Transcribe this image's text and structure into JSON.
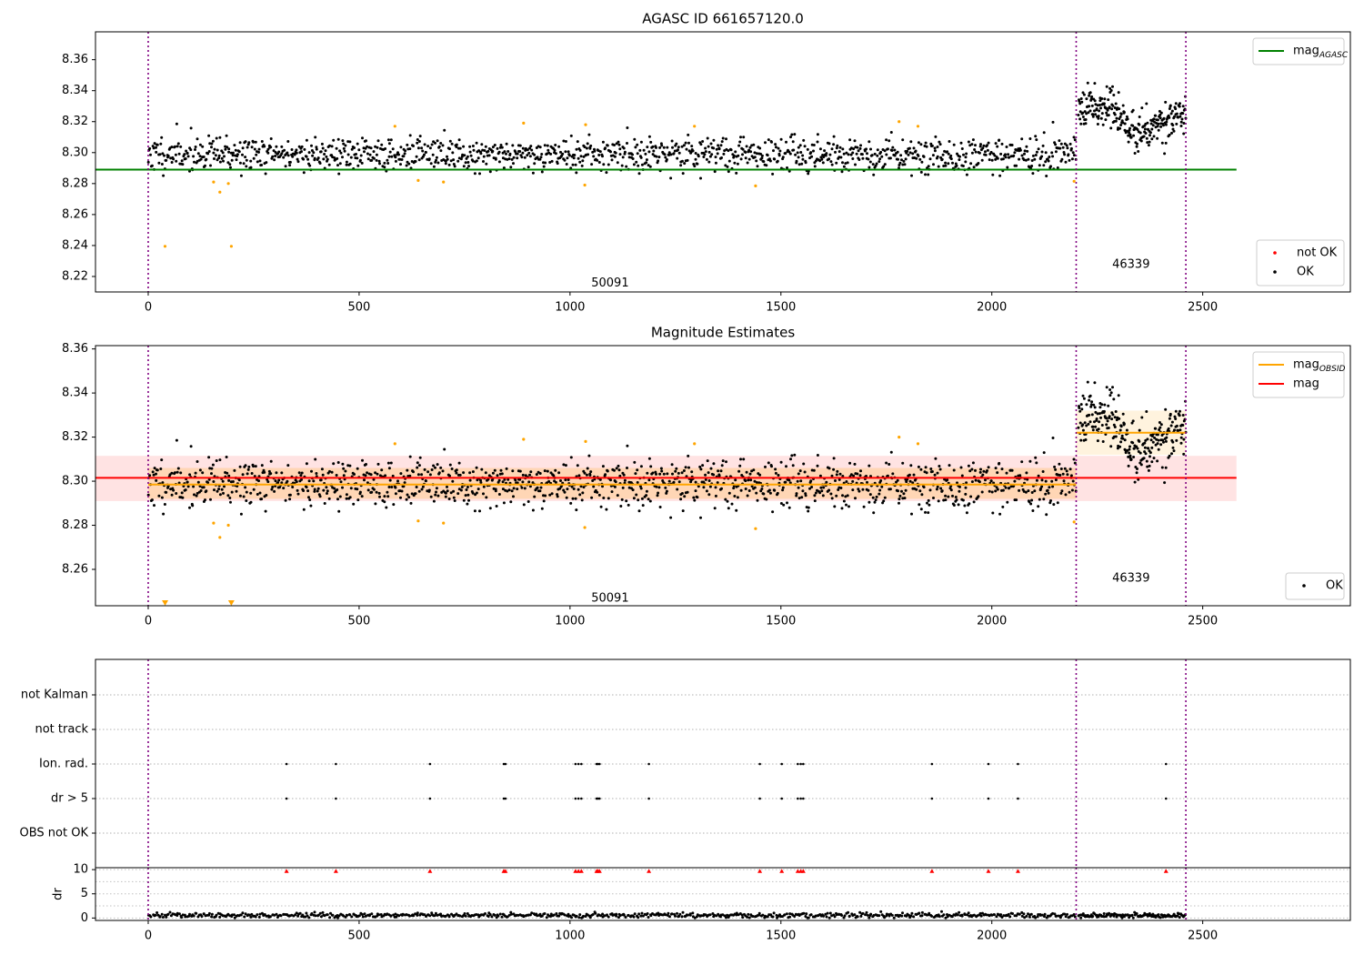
{
  "chart_data": [
    {
      "type": "scatter",
      "title": "AGASC ID 661657120.0",
      "xlim": [
        -125,
        2850
      ],
      "ylim": [
        8.21,
        8.378
      ],
      "xticks": [
        0,
        500,
        1000,
        1500,
        2000,
        2500
      ],
      "yticks": [
        8.22,
        8.24,
        8.26,
        8.28,
        8.3,
        8.32,
        8.34,
        8.36
      ],
      "obs_boundaries": [
        0,
        2200,
        2460
      ],
      "obs_labels": [
        {
          "text": "50091",
          "x": 1095,
          "y": 8.2155
        },
        {
          "text": "46339",
          "x": 2330,
          "y": 8.2275
        }
      ],
      "hlines": [
        {
          "name": "mag_AGASC",
          "y": 8.289,
          "x0": -125,
          "x1": 2580,
          "color": "#008000"
        }
      ],
      "series": [
        {
          "name": "OK",
          "color": "#000000",
          "segments": [
            {
              "x0": 0,
              "x1": 2200,
              "n": 1300,
              "mean": 8.299,
              "sd": 0.0055,
              "seed": 11
            },
            {
              "x0": 2205,
              "x1": 2460,
              "n": 260,
              "mean": 8.322,
              "sd": 0.006,
              "slope_pts": [
                [
                  2205,
                  8.332
                ],
                [
                  2280,
                  8.33
                ],
                [
                  2340,
                  8.312
                ],
                [
                  2400,
                  8.321
                ],
                [
                  2460,
                  8.322
                ]
              ],
              "seed": 23
            }
          ]
        },
        {
          "name": "not OK",
          "color": "#ff0000",
          "points": []
        },
        {
          "name": "outliers",
          "color": "#ffa500",
          "points": [
            [
              40,
              8.2395
            ],
            [
              155,
              8.281
            ],
            [
              170,
              8.2745
            ],
            [
              190,
              8.28
            ],
            [
              197,
              8.2395
            ],
            [
              585,
              8.317
            ],
            [
              640,
              8.282
            ],
            [
              700,
              8.281
            ],
            [
              890,
              8.319
            ],
            [
              1035,
              8.279
            ],
            [
              1037,
              8.318
            ],
            [
              1295,
              8.317
            ],
            [
              1440,
              8.2785
            ],
            [
              1780,
              8.32
            ],
            [
              1825,
              8.317
            ],
            [
              2195,
              8.2815
            ]
          ]
        }
      ],
      "legends": [
        {
          "location": "upper right",
          "entries": [
            {
              "label": "mag",
              "sub": "AGASC",
              "color": "#008000",
              "kind": "line"
            }
          ]
        },
        {
          "location": "lower right",
          "entries": [
            {
              "label": "not OK",
              "color": "#ff0000",
              "kind": "dot"
            },
            {
              "label": "OK",
              "color": "#000000",
              "kind": "dot"
            }
          ]
        }
      ]
    },
    {
      "type": "scatter",
      "title": "Magnitude Estimates",
      "xlim": [
        -125,
        2850
      ],
      "ylim": [
        8.2435,
        8.3615
      ],
      "xticks": [
        0,
        500,
        1000,
        1500,
        2000,
        2500
      ],
      "yticks": [
        8.26,
        8.28,
        8.3,
        8.32,
        8.34,
        8.36
      ],
      "obs_boundaries": [
        0,
        2200,
        2460
      ],
      "obs_labels": [
        {
          "text": "50091",
          "x": 1095,
          "y": 8.2468
        },
        {
          "text": "46339",
          "x": 2330,
          "y": 8.2558
        }
      ],
      "bands": [
        {
          "x0": -125,
          "x1": 2580,
          "y0": 8.291,
          "y1": 8.3115,
          "color": "#ff0000",
          "opacity": 0.11
        },
        {
          "x0": 0,
          "x1": 2200,
          "y0": 8.292,
          "y1": 8.306,
          "color": "#ffa500",
          "opacity": 0.2
        },
        {
          "x0": 2200,
          "x1": 2460,
          "y0": 8.312,
          "y1": 8.332,
          "color": "#ffa500",
          "opacity": 0.13
        }
      ],
      "hlines": [
        {
          "name": "mag_OBSID 50091",
          "y": 8.2985,
          "x0": 0,
          "x1": 2200,
          "color": "#ffa500"
        },
        {
          "name": "mag_OBSID 46339",
          "y": 8.322,
          "x0": 2200,
          "x1": 2460,
          "color": "#ffa500"
        },
        {
          "name": "mag",
          "y": 8.3015,
          "x0": -125,
          "x1": 2580,
          "color": "#ff0000"
        }
      ],
      "series": [
        {
          "name": "OK",
          "color": "#000000",
          "segments": [
            {
              "x0": 0,
              "x1": 2200,
              "n": 1300,
              "mean": 8.299,
              "sd": 0.0055,
              "seed": 11
            },
            {
              "x0": 2205,
              "x1": 2460,
              "n": 260,
              "mean": 8.322,
              "sd": 0.006,
              "slope_pts": [
                [
                  2205,
                  8.332
                ],
                [
                  2280,
                  8.33
                ],
                [
                  2340,
                  8.312
                ],
                [
                  2400,
                  8.321
                ],
                [
                  2460,
                  8.322
                ]
              ],
              "seed": 23
            }
          ]
        },
        {
          "name": "outliers",
          "color": "#ffa500",
          "points": [
            [
              155,
              8.281
            ],
            [
              170,
              8.2745
            ],
            [
              190,
              8.28
            ],
            [
              585,
              8.317
            ],
            [
              640,
              8.282
            ],
            [
              700,
              8.281
            ],
            [
              890,
              8.319
            ],
            [
              1035,
              8.279
            ],
            [
              1037,
              8.318
            ],
            [
              1295,
              8.317
            ],
            [
              1440,
              8.2785
            ],
            [
              1780,
              8.32
            ],
            [
              1825,
              8.317
            ],
            [
              2195,
              8.2815
            ]
          ]
        },
        {
          "name": "below-range",
          "color": "#ffa500",
          "marker": "triangle-down",
          "points": [
            [
              40,
              8.2435
            ],
            [
              197,
              8.2435
            ]
          ]
        }
      ],
      "legends": [
        {
          "location": "upper right",
          "entries": [
            {
              "label": "mag",
              "sub": "OBSID",
              "color": "#ffa500",
              "kind": "line"
            },
            {
              "label": "mag",
              "color": "#ff0000",
              "kind": "line"
            }
          ]
        },
        {
          "location": "lower right",
          "entries": [
            {
              "label": "OK",
              "color": "#000000",
              "kind": "dot"
            }
          ]
        }
      ]
    },
    {
      "type": "scatter",
      "xlim": [
        -125,
        2850
      ],
      "xticks": [
        0,
        500,
        1000,
        1500,
        2000,
        2500
      ],
      "obs_boundaries": [
        0,
        2200,
        2460
      ],
      "flag_rows": [
        "not Kalman",
        "not track",
        "Ion. rad.",
        "dr > 5",
        "OBS not OK"
      ],
      "flag_events_x": [
        328,
        445,
        668,
        843,
        847,
        1013,
        1020,
        1027,
        1063,
        1066,
        1070,
        1187,
        1450,
        1502,
        1540,
        1547,
        1553,
        1858,
        1992,
        2062,
        2413
      ],
      "flagged_rows": [
        "Ion. rad.",
        "dr > 5"
      ]
    },
    {
      "type": "line",
      "ylabel": "dr",
      "xlim": [
        -125,
        2850
      ],
      "ylim": [
        -0.5,
        10.4
      ],
      "xticks": [
        0,
        500,
        1000,
        1500,
        2000,
        2500
      ],
      "yticks": [
        0,
        5,
        10
      ],
      "obs_boundaries": [
        0,
        2200,
        2460
      ],
      "series": [
        {
          "name": "dr",
          "color": "#000000",
          "segments": [
            {
              "x0": 0,
              "x1": 2200,
              "n": 700,
              "mean": 0.55,
              "sd": 0.25,
              "seed": 41
            },
            {
              "x0": 2205,
              "x1": 2460,
              "n": 120,
              "mean": 0.5,
              "sd": 0.25,
              "seed": 43
            }
          ]
        },
        {
          "name": "dr > 5 (clipped)",
          "color": "#ff0000",
          "marker": "triangle-up",
          "y": 9.7,
          "x": [
            328,
            445,
            668,
            843,
            847,
            1013,
            1020,
            1027,
            1063,
            1066,
            1070,
            1187,
            1450,
            1502,
            1540,
            1547,
            1553,
            1858,
            1992,
            2062,
            2413
          ]
        }
      ]
    }
  ]
}
